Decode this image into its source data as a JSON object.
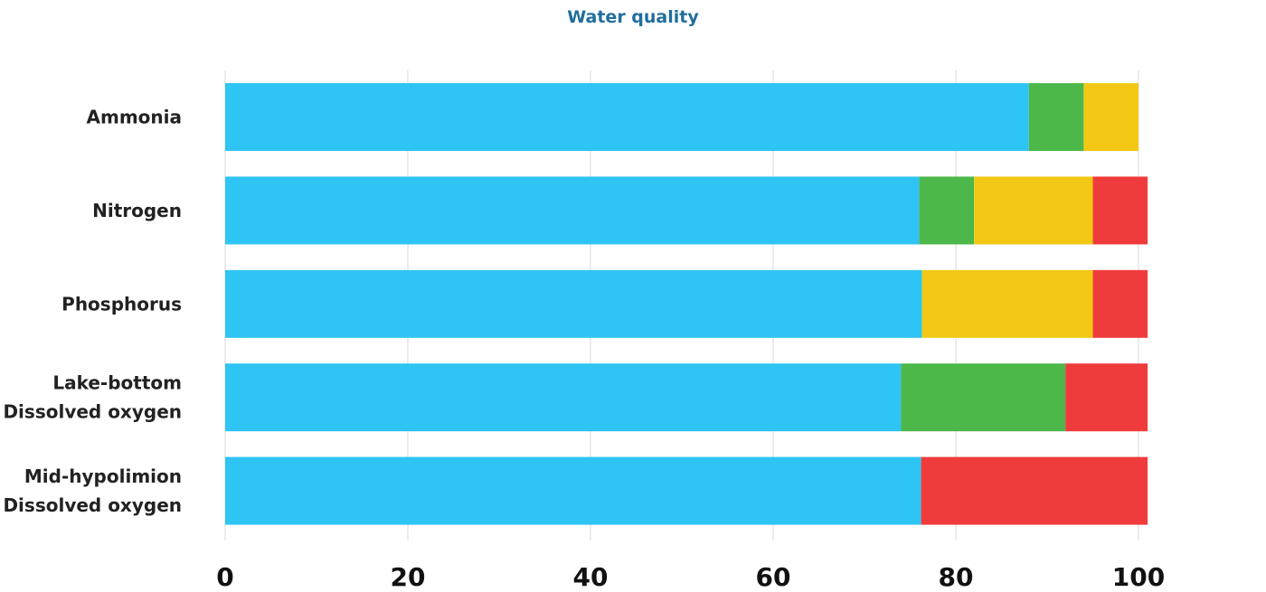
{
  "chart_data": {
    "type": "bar",
    "orientation": "horizontal",
    "stacked": true,
    "title": "Water quality",
    "xlabel": "",
    "ylabel": "",
    "xlim": [
      0,
      100
    ],
    "x_ticks": [
      "0",
      "20",
      "40",
      "60",
      "80",
      "100"
    ],
    "grid": "vertical",
    "legend": "none",
    "categories": [
      [
        "Ammonia"
      ],
      [
        "Nitrogen"
      ],
      [
        "Phosphorus"
      ],
      [
        "Lake-bottom",
        "Dissolved oxygen"
      ],
      [
        "Mid-hypolimion",
        "Dissolved oxygen"
      ]
    ],
    "series": [
      {
        "color": "#2ec4f3",
        "values": [
          88,
          76,
          76.3,
          74,
          76.2
        ]
      },
      {
        "color": "#4cb84a",
        "values": [
          6,
          6,
          0,
          18,
          0
        ]
      },
      {
        "color": "#f2c814",
        "values": [
          6,
          13,
          18.7,
          0,
          0
        ]
      },
      {
        "color": "#ef3b3b",
        "values": [
          0,
          6,
          6,
          9,
          24.8
        ]
      }
    ]
  }
}
